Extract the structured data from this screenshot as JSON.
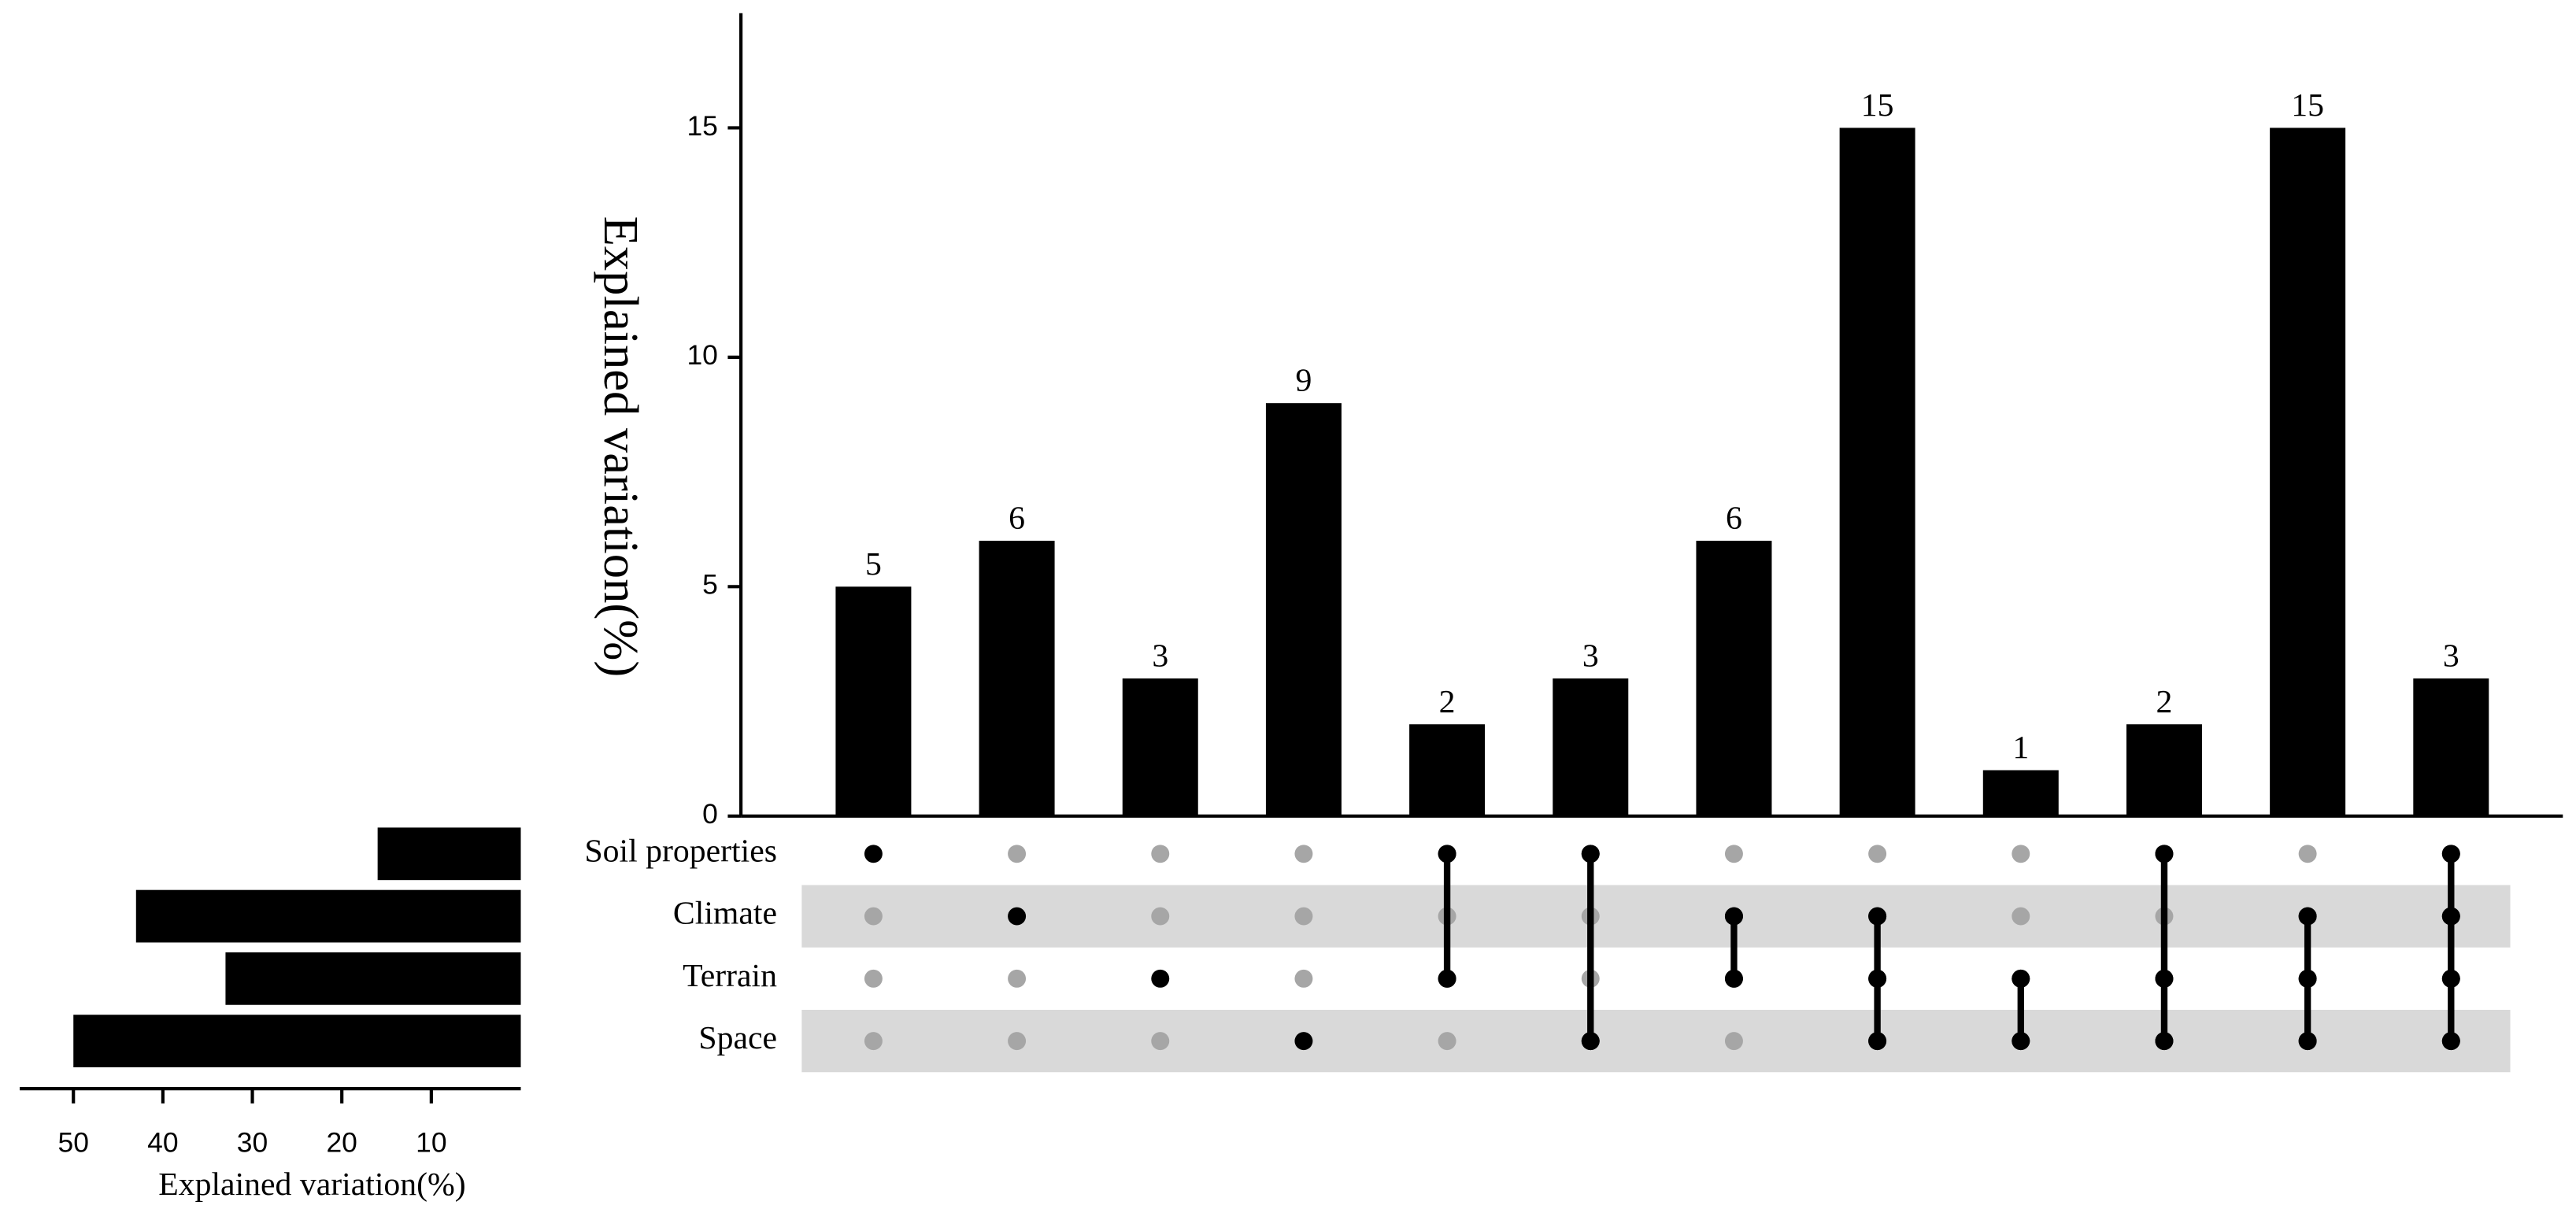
{
  "chart_data": {
    "type": "upset",
    "ylabel": "Explained variation(%)",
    "values": [
      5,
      6,
      3,
      9,
      2,
      3,
      6,
      15,
      1,
      2,
      15,
      3
    ],
    "value_labels": [
      "5",
      "6",
      "3",
      "9",
      "2",
      "3",
      "6",
      "15",
      "1",
      "2",
      "15",
      "3"
    ],
    "color": "#000000",
    "ylim": [
      0,
      17.5
    ],
    "yticks": [
      0,
      5,
      10,
      15
    ],
    "sets": [
      "Soil properties",
      "Climate",
      "Terrain",
      "Space"
    ],
    "members": [
      [
        0
      ],
      [
        1
      ],
      [
        2
      ],
      [
        3
      ],
      [
        0,
        2
      ],
      [
        0,
        3
      ],
      [
        1,
        2
      ],
      [
        1,
        2,
        3
      ],
      [
        2,
        3
      ],
      [
        0,
        2,
        3
      ],
      [
        1,
        2,
        3
      ],
      [
        0,
        1,
        2,
        3
      ]
    ],
    "set_values": [
      16,
      43,
      33,
      50
    ],
    "set_xlim": [
      0,
      56
    ],
    "set_xticks": [
      10,
      20,
      30,
      40,
      50
    ],
    "set_xlabel": "Explained variation(%)",
    "inactive_color": "#a6a6a6",
    "stripe_color": "#d9d9d9"
  }
}
